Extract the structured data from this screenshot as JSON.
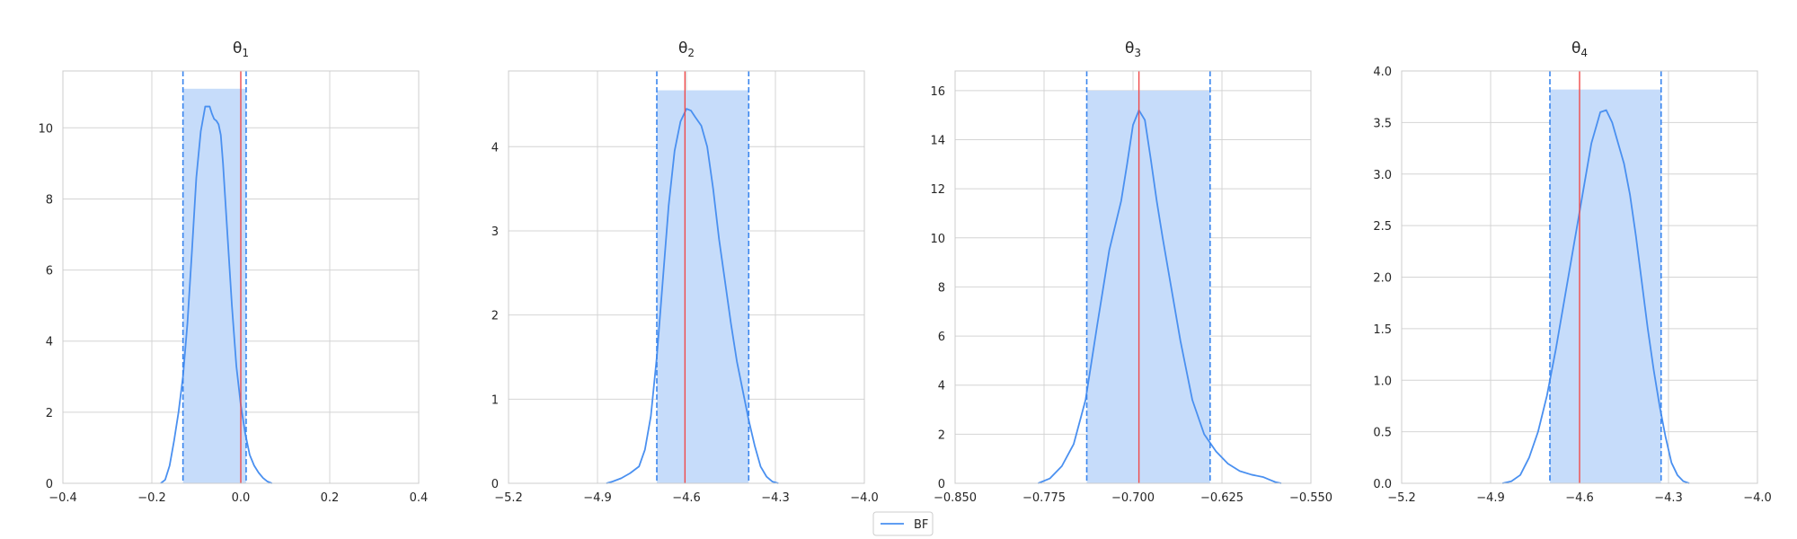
{
  "colors": {
    "kde_line": "#4a90f0",
    "interval_fill": "#c6dcfa",
    "interval_line": "#3a86ee",
    "true_value": "#f04a4a",
    "grid": "#d4d4d4",
    "axis_frame": "#cccccc",
    "text": "#262626"
  },
  "legend": {
    "label": "BF",
    "placement": "bottom-center"
  },
  "chart_data": [
    {
      "type": "line",
      "title_base": "θ",
      "title_sub": "1",
      "xlim": [
        -0.4,
        0.4
      ],
      "ylim": [
        0,
        11.6
      ],
      "xticks": [
        -0.4,
        -0.2,
        0.0,
        0.2,
        0.4
      ],
      "xtick_labels": [
        "−0.4",
        "−0.2",
        "0.0",
        "0.2",
        "0.4"
      ],
      "yticks": [
        0,
        2,
        4,
        6,
        8,
        10
      ],
      "ytick_labels": [
        "0",
        "2",
        "4",
        "6",
        "8",
        "10"
      ],
      "grid": true,
      "interval": [
        -0.13,
        0.012
      ],
      "interval_height": 11.1,
      "true_value": 0.0,
      "series": [
        {
          "name": "BF",
          "x": [
            -0.18,
            -0.17,
            -0.16,
            -0.15,
            -0.14,
            -0.13,
            -0.12,
            -0.11,
            -0.1,
            -0.09,
            -0.08,
            -0.07,
            -0.065,
            -0.06,
            -0.055,
            -0.05,
            -0.045,
            -0.04,
            -0.035,
            -0.03,
            -0.02,
            -0.01,
            0.0,
            0.01,
            0.02,
            0.03,
            0.04,
            0.05,
            0.06,
            0.07
          ],
          "y": [
            0.0,
            0.1,
            0.5,
            1.2,
            2.0,
            3.0,
            4.5,
            6.5,
            8.6,
            9.9,
            10.6,
            10.6,
            10.4,
            10.25,
            10.2,
            10.1,
            9.8,
            9.0,
            8.0,
            7.0,
            5.0,
            3.3,
            2.2,
            1.4,
            0.8,
            0.5,
            0.3,
            0.15,
            0.05,
            0.0
          ]
        }
      ]
    },
    {
      "type": "line",
      "title_base": "θ",
      "title_sub": "2",
      "xlim": [
        -5.2,
        -4.0
      ],
      "ylim": [
        0,
        4.9
      ],
      "xticks": [
        -5.2,
        -4.9,
        -4.6,
        -4.3,
        -4.0
      ],
      "xtick_labels": [
        "−5.2",
        "−4.9",
        "−4.6",
        "−4.3",
        "−4.0"
      ],
      "yticks": [
        0,
        1,
        2,
        3,
        4
      ],
      "ytick_labels": [
        "0",
        "1",
        "2",
        "3",
        "4"
      ],
      "grid": true,
      "interval": [
        -4.7,
        -4.39
      ],
      "interval_height": 4.67,
      "true_value": -4.605,
      "series": [
        {
          "name": "BF",
          "x": [
            -4.87,
            -4.85,
            -4.82,
            -4.79,
            -4.76,
            -4.74,
            -4.72,
            -4.7,
            -4.68,
            -4.66,
            -4.64,
            -4.62,
            -4.6,
            -4.585,
            -4.57,
            -4.55,
            -4.53,
            -4.51,
            -4.49,
            -4.47,
            -4.45,
            -4.43,
            -4.41,
            -4.39,
            -4.37,
            -4.35,
            -4.33,
            -4.31,
            -4.29
          ],
          "y": [
            0.0,
            0.02,
            0.06,
            0.12,
            0.2,
            0.4,
            0.8,
            1.5,
            2.4,
            3.3,
            3.95,
            4.3,
            4.45,
            4.43,
            4.35,
            4.25,
            4.0,
            3.5,
            2.9,
            2.4,
            1.9,
            1.45,
            1.1,
            0.75,
            0.45,
            0.2,
            0.08,
            0.02,
            0.0
          ]
        }
      ]
    },
    {
      "type": "line",
      "title_base": "θ",
      "title_sub": "3",
      "xlim": [
        -0.85,
        -0.55
      ],
      "ylim": [
        0,
        16.8
      ],
      "xticks": [
        -0.85,
        -0.775,
        -0.7,
        -0.625,
        -0.55
      ],
      "xtick_labels": [
        "−0.850",
        "−0.775",
        "−0.700",
        "−0.625",
        "−0.550"
      ],
      "yticks": [
        0,
        2,
        4,
        6,
        8,
        10,
        12,
        14,
        16
      ],
      "ytick_labels": [
        "0",
        "2",
        "4",
        "6",
        "8",
        "10",
        "12",
        "14",
        "16"
      ],
      "grid": true,
      "interval": [
        -0.739,
        -0.635
      ],
      "interval_height": 16.0,
      "true_value": -0.695,
      "series": [
        {
          "name": "BF",
          "x": [
            -0.78,
            -0.77,
            -0.76,
            -0.75,
            -0.74,
            -0.73,
            -0.72,
            -0.715,
            -0.71,
            -0.705,
            -0.7,
            -0.695,
            -0.69,
            -0.685,
            -0.68,
            -0.675,
            -0.67,
            -0.66,
            -0.65,
            -0.64,
            -0.63,
            -0.62,
            -0.61,
            -0.6,
            -0.59,
            -0.585,
            -0.58,
            -0.575
          ],
          "y": [
            0.0,
            0.2,
            0.7,
            1.6,
            3.4,
            6.5,
            9.5,
            10.5,
            11.5,
            13.0,
            14.6,
            15.2,
            14.8,
            13.2,
            11.5,
            10.0,
            8.6,
            5.8,
            3.4,
            2.0,
            1.3,
            0.8,
            0.5,
            0.35,
            0.25,
            0.15,
            0.05,
            0.0
          ]
        }
      ]
    },
    {
      "type": "line",
      "title_base": "θ",
      "title_sub": "4",
      "xlim": [
        -5.2,
        -4.0
      ],
      "ylim": [
        0,
        4.0
      ],
      "xticks": [
        -5.2,
        -4.9,
        -4.6,
        -4.3,
        -4.0
      ],
      "xtick_labels": [
        "−5.2",
        "−4.9",
        "−4.6",
        "−4.3",
        "−4.0"
      ],
      "yticks": [
        0,
        0.5,
        1.0,
        1.5,
        2.0,
        2.5,
        3.0,
        3.5,
        4.0
      ],
      "ytick_labels": [
        "0.0",
        "0.5",
        "1.0",
        "1.5",
        "2.0",
        "2.5",
        "3.0",
        "3.5",
        "4.0"
      ],
      "grid": true,
      "interval": [
        -4.7,
        -4.325
      ],
      "interval_height": 3.82,
      "true_value": -4.6,
      "series": [
        {
          "name": "BF",
          "x": [
            -4.86,
            -4.83,
            -4.8,
            -4.77,
            -4.74,
            -4.71,
            -4.68,
            -4.65,
            -4.62,
            -4.59,
            -4.56,
            -4.53,
            -4.51,
            -4.49,
            -4.47,
            -4.45,
            -4.43,
            -4.41,
            -4.39,
            -4.37,
            -4.35,
            -4.33,
            -4.31,
            -4.29,
            -4.27,
            -4.25,
            -4.23
          ],
          "y": [
            0.0,
            0.02,
            0.08,
            0.25,
            0.5,
            0.85,
            1.3,
            1.8,
            2.3,
            2.8,
            3.3,
            3.6,
            3.62,
            3.5,
            3.3,
            3.1,
            2.8,
            2.4,
            1.95,
            1.5,
            1.1,
            0.75,
            0.45,
            0.2,
            0.08,
            0.02,
            0.0
          ]
        }
      ]
    }
  ]
}
